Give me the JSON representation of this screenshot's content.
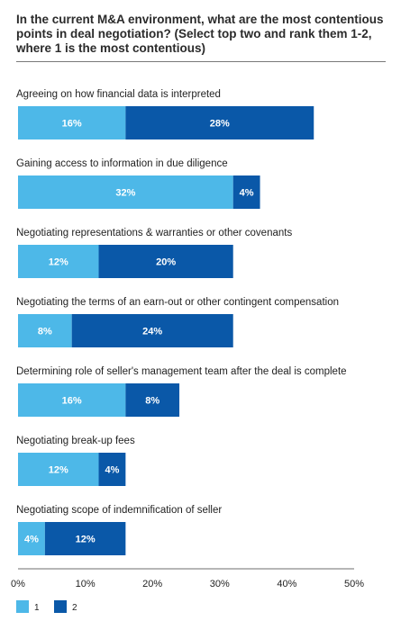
{
  "title": "In the current M&A environment, what are the most contentious points in deal negotiation? (Select top two and rank them 1-2, where 1 is the most contentious)",
  "chart_data": {
    "type": "bar",
    "orientation": "horizontal",
    "stacked": true,
    "categories": [
      "Agreeing on how financial data is interpreted",
      "Gaining access to information in due diligence",
      "Negotiating representations & warranties or other covenants",
      "Negotiating the terms of an earn-out or other contingent compensation",
      "Determining role of seller's management team after the deal is complete",
      "Negotiating break-up fees",
      "Negotiating scope of indemnification of seller"
    ],
    "series": [
      {
        "name": "1",
        "color": "#4db8e8",
        "values": [
          16,
          32,
          12,
          8,
          16,
          12,
          4
        ],
        "labels": [
          "16%",
          "32%",
          "12%",
          "8%",
          "16%",
          "12%",
          "4%"
        ]
      },
      {
        "name": "2",
        "color": "#0a58a8",
        "values": [
          28,
          4,
          20,
          24,
          8,
          4,
          12
        ],
        "labels": [
          "28%",
          "4%",
          "20%",
          "24%",
          "8%",
          "4%",
          "12%"
        ]
      }
    ],
    "xlim": [
      0,
      50
    ],
    "xticks": [
      0,
      10,
      20,
      30,
      40,
      50
    ],
    "xtick_labels": [
      "0%",
      "10%",
      "20%",
      "30%",
      "40%",
      "50%"
    ],
    "legend_placement": "bottom-left",
    "grid": false
  }
}
